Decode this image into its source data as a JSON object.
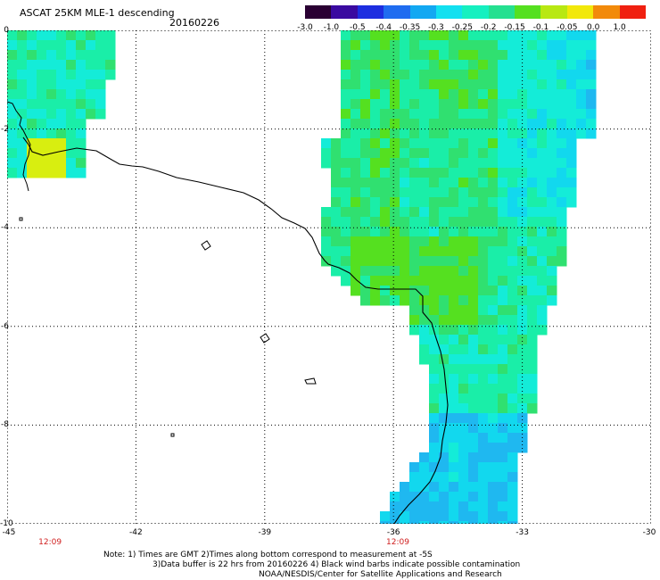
{
  "header": {
    "title": "ASCAT 25KM MLE-1 descending",
    "date": "20160226"
  },
  "colorbar": {
    "labels": [
      "-3.0",
      "-1.0",
      "-0.5",
      "-0.4",
      "-0.35",
      "-0.3",
      "-0.25",
      "-0.2",
      "-0.15",
      "-0.1",
      "-0.05",
      "0.0",
      "1.0"
    ],
    "colors": [
      "#2a0033",
      "#3a0aa0",
      "#1d2ee0",
      "#1f6cf0",
      "#12a8f2",
      "#12e0f0",
      "#15f0c0",
      "#25e090",
      "#55e020",
      "#b8e812",
      "#f2e80a",
      "#f28a0a",
      "#f02010"
    ]
  },
  "map": {
    "lon_ticks": [
      "-45",
      "-42",
      "-39",
      "-36",
      "-33",
      "-30"
    ],
    "lat_ticks": [
      "0",
      "-2",
      "-4",
      "-6",
      "-8",
      "-10"
    ],
    "lon_range": [
      -45,
      -30
    ],
    "lat_range": [
      -10,
      0
    ],
    "time_labels": [
      {
        "lon": -44.0,
        "text": "12:09"
      },
      {
        "lon": -35.9,
        "text": "12:09"
      }
    ],
    "coast_color": "#000000",
    "grid": "dotted"
  },
  "footer": {
    "note1": "Note: 1) Times are GMT 2)Times along bottom correspond to measurement at -5S",
    "note2": "3)Data buffer is 22 hrs from 20160226 4) Black wind barbs indicate possible contamination",
    "credit": "NOAA/NESDIS/Center for Satellite Applications and Research"
  }
}
